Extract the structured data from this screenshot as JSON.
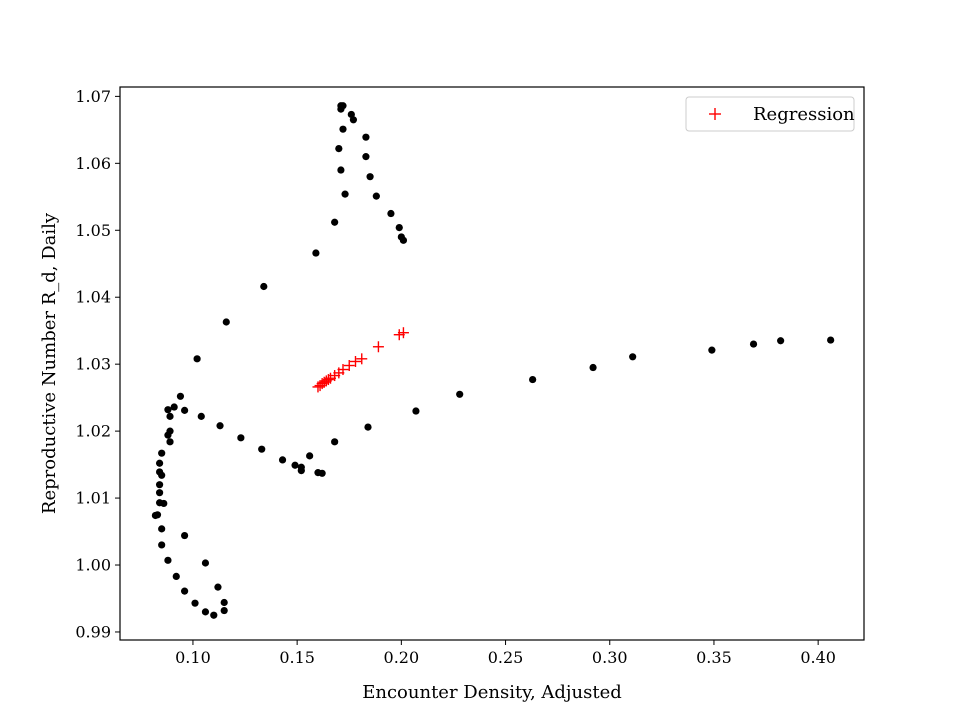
{
  "chart_data": {
    "type": "scatter",
    "title": "",
    "xlabel": "Encounter Density, Adjusted",
    "ylabel": "Reproductive Number R_d, Daily",
    "xlim": [
      0.065,
      0.422
    ],
    "ylim": [
      0.9888,
      1.0714
    ],
    "xticks": [
      0.1,
      0.15,
      0.2,
      0.25,
      0.3,
      0.35,
      0.4
    ],
    "xtick_labels": [
      "0.10",
      "0.15",
      "0.20",
      "0.25",
      "0.30",
      "0.35",
      "0.40"
    ],
    "yticks": [
      0.99,
      1.0,
      1.01,
      1.02,
      1.03,
      1.04,
      1.05,
      1.06,
      1.07
    ],
    "ytick_labels": [
      "0.99",
      "1.00",
      "1.01",
      "1.02",
      "1.03",
      "1.04",
      "1.05",
      "1.06",
      "1.07"
    ],
    "grid": false,
    "legend_position": "top-right",
    "legend": [
      "Regression"
    ],
    "series": [
      {
        "marker": "circle",
        "color": "#000000",
        "x": [
          0.171,
          0.172,
          0.171,
          0.176,
          0.177,
          0.172,
          0.183,
          0.17,
          0.183,
          0.171,
          0.185,
          0.173,
          0.188,
          0.195,
          0.168,
          0.199,
          0.2,
          0.201,
          0.159,
          0.134,
          0.116,
          0.102,
          0.094,
          0.096,
          0.088,
          0.091,
          0.089,
          0.089,
          0.104,
          0.113,
          0.088,
          0.123,
          0.089,
          0.133,
          0.085,
          0.156,
          0.143,
          0.149,
          0.084,
          0.152,
          0.152,
          0.084,
          0.16,
          0.162,
          0.085,
          0.084,
          0.084,
          0.084,
          0.086,
          0.083,
          0.082,
          0.085,
          0.096,
          0.085,
          0.088,
          0.106,
          0.092,
          0.112,
          0.096,
          0.115,
          0.101,
          0.115,
          0.106,
          0.11,
          0.168,
          0.184,
          0.207,
          0.228,
          0.263,
          0.292,
          0.311,
          0.349,
          0.369,
          0.382,
          0.406
        ],
        "y": [
          1.0686,
          1.0686,
          1.0681,
          1.0673,
          1.0665,
          1.0651,
          1.0639,
          1.0622,
          1.061,
          1.059,
          1.058,
          1.0554,
          1.0551,
          1.0525,
          1.0512,
          1.0504,
          1.049,
          1.0485,
          1.0466,
          1.0416,
          1.0363,
          1.0308,
          1.0252,
          1.0231,
          1.0232,
          1.0236,
          1.0222,
          1.02,
          1.0222,
          1.0208,
          1.0194,
          1.019,
          1.0184,
          1.0173,
          1.0167,
          1.0163,
          1.0157,
          1.0149,
          1.0152,
          1.0146,
          1.0141,
          1.0139,
          1.0138,
          1.0137,
          1.0134,
          1.012,
          1.0108,
          1.0093,
          1.0092,
          1.0075,
          1.0074,
          1.0054,
          1.0044,
          1.003,
          1.0007,
          1.0003,
          0.9983,
          0.9967,
          0.9961,
          0.9944,
          0.9943,
          0.9932,
          0.993,
          0.9925,
          1.0184,
          1.0206,
          1.023,
          1.0255,
          1.0277,
          1.0295,
          1.0311,
          1.0321,
          1.033,
          1.0335,
          1.0336
        ]
      },
      {
        "name": "Regression",
        "marker": "plus",
        "color": "#ff0000",
        "x": [
          0.16,
          0.161,
          0.162,
          0.163,
          0.164,
          0.165,
          0.166,
          0.168,
          0.17,
          0.172,
          0.175,
          0.178,
          0.181,
          0.189,
          0.199,
          0.201
        ],
        "y": [
          1.0266,
          1.0268,
          1.0271,
          1.0273,
          1.0275,
          1.0277,
          1.0279,
          1.0283,
          1.0287,
          1.0292,
          1.0298,
          1.0304,
          1.0308,
          1.0326,
          1.0344,
          1.0347
        ]
      }
    ]
  }
}
